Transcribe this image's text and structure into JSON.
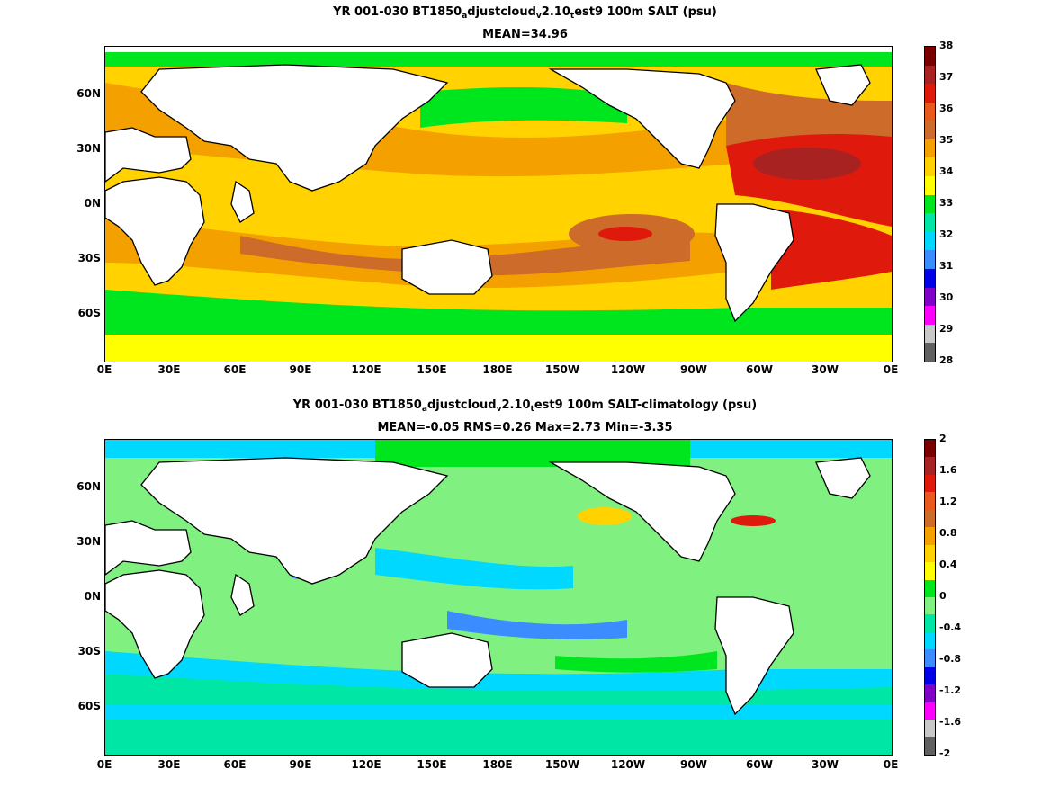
{
  "panels": [
    {
      "title_line1": {
        "a": "YR 001-030 BT1850",
        "s1": "a",
        "b": "djustcloud",
        "s2": "v",
        "c": "2.10",
        "s3": "t",
        "d": "est9 100m SALT (psu)"
      },
      "title_line2": "MEAN=34.96",
      "colorbar": {
        "labels": [
          "38",
          "37",
          "36",
          "35",
          "34",
          "33",
          "32",
          "31",
          "30",
          "29",
          "28"
        ],
        "colors": [
          "#7a0000",
          "#a82222",
          "#e0190d",
          "#e9581c",
          "#cc6b2a",
          "#f4a100",
          "#ffd200",
          "#ffff00",
          "#00e61e",
          "#00e6a4",
          "#00d8ff",
          "#3a8cff",
          "#0000e6",
          "#8000c8",
          "#ff00ff",
          "#c8c8c8",
          "#606060"
        ]
      }
    },
    {
      "title_line1": {
        "a": "YR 001-030 BT1850",
        "s1": "a",
        "b": "djustcloud",
        "s2": "v",
        "c": "2.10",
        "s3": "t",
        "d": "est9 100m SALT-climatology (psu)"
      },
      "title_line2": "MEAN=-0.05   RMS=0.26   Max=2.73   Min=-3.35",
      "colorbar": {
        "labels": [
          "2",
          "1.6",
          "1.2",
          "0.8",
          "0.4",
          "0",
          "-0.4",
          "-0.8",
          "-1.2",
          "-1.6",
          "-2"
        ],
        "colors": [
          "#7a0000",
          "#a82222",
          "#e0190d",
          "#e9581c",
          "#cc6b2a",
          "#f4a100",
          "#ffd200",
          "#ffff00",
          "#00e61e",
          "#80f080",
          "#00e6a4",
          "#00d8ff",
          "#3a8cff",
          "#0000e6",
          "#8000c8",
          "#ff00ff",
          "#c8c8c8",
          "#606060"
        ]
      }
    }
  ],
  "axes": {
    "lat_labels": [
      "60N",
      "30N",
      "0N",
      "30S",
      "60S"
    ],
    "lon_labels": [
      "0E",
      "30E",
      "60E",
      "90E",
      "120E",
      "150E",
      "180E",
      "150W",
      "120W",
      "90W",
      "60W",
      "30W",
      "0E"
    ]
  },
  "legend_colors": {
    "land": "#ffffff",
    "coast": "#000000"
  }
}
